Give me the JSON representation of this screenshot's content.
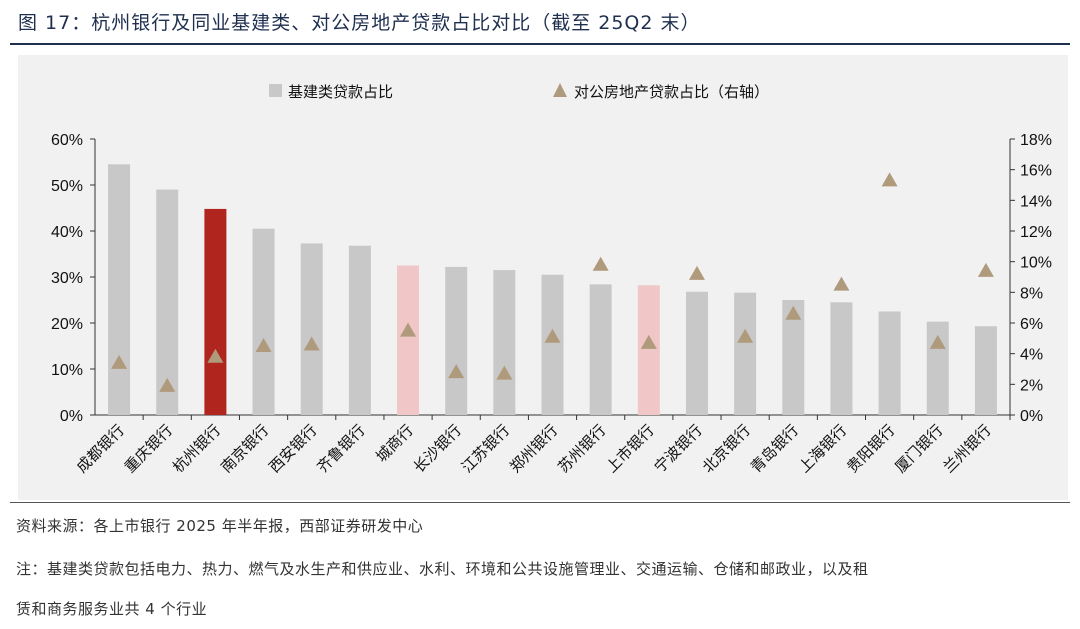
{
  "title": "图 17：杭州银行及同业基建类、对公房地产贷款占比对比（截至 25Q2 末）",
  "source": "资料来源：各上市银行 2025 年半年报，西部证券研发中心",
  "note_line1": "注：基建类贷款包括电力、热力、燃气及水生产和供应业、水利、环境和公共设施管理业、交通运输、仓储和邮政业，以及租",
  "note_line2": "赁和商务服务业共 4 个行业",
  "colors": {
    "bar_default": "#c8c8c8",
    "bar_focus": "#b0261e",
    "bar_highlight": "#f0c6c6",
    "marker": "#b09a7c",
    "panel": "#f1f1f1"
  },
  "chart_data": {
    "type": "bar",
    "categories": [
      "成都银行",
      "重庆银行",
      "杭州银行",
      "南京银行",
      "西安银行",
      "齐鲁银行",
      "城商行",
      "长沙银行",
      "江苏银行",
      "郑州银行",
      "苏州银行",
      "上市银行",
      "宁波银行",
      "北京银行",
      "青岛银行",
      "上海银行",
      "贵阳银行",
      "厦门银行",
      "兰州银行"
    ],
    "series": [
      {
        "name": "基建类贷款占比",
        "type": "bar",
        "axis": "left",
        "values": [
          54.5,
          49.0,
          44.8,
          40.5,
          37.3,
          36.8,
          32.5,
          32.2,
          31.5,
          30.5,
          28.4,
          28.2,
          26.8,
          26.6,
          25.0,
          24.5,
          22.5,
          20.3,
          19.3
        ]
      },
      {
        "name": "对公房地产贷款占比（右轴）",
        "type": "scatter",
        "axis": "right",
        "marker": "triangle",
        "values": [
          3.4,
          1.9,
          3.8,
          4.5,
          4.6,
          null,
          5.5,
          2.8,
          2.7,
          5.1,
          9.8,
          4.7,
          9.2,
          5.1,
          6.6,
          8.5,
          15.3,
          4.7,
          9.4
        ]
      }
    ],
    "bar_styles": [
      "default",
      "default",
      "focus",
      "default",
      "default",
      "default",
      "highlight",
      "default",
      "default",
      "default",
      "default",
      "highlight",
      "default",
      "default",
      "default",
      "default",
      "default",
      "default",
      "default"
    ],
    "y_left": {
      "min": 0,
      "max": 60,
      "step": 10,
      "ticks": [
        "0%",
        "10%",
        "20%",
        "30%",
        "40%",
        "50%",
        "60%"
      ]
    },
    "y_right": {
      "min": 0,
      "max": 18,
      "step": 2,
      "ticks": [
        "0%",
        "2%",
        "4%",
        "6%",
        "8%",
        "10%",
        "12%",
        "14%",
        "16%",
        "18%"
      ]
    },
    "legend_position": "top-center",
    "grid": false
  }
}
